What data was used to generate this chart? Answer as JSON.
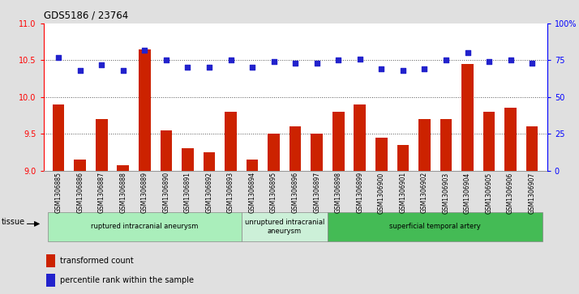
{
  "title": "GDS5186 / 23764",
  "samples": [
    "GSM1306885",
    "GSM1306886",
    "GSM1306887",
    "GSM1306888",
    "GSM1306889",
    "GSM1306890",
    "GSM1306891",
    "GSM1306892",
    "GSM1306893",
    "GSM1306894",
    "GSM1306895",
    "GSM1306896",
    "GSM1306897",
    "GSM1306898",
    "GSM1306899",
    "GSM1306900",
    "GSM1306901",
    "GSM1306902",
    "GSM1306903",
    "GSM1306904",
    "GSM1306905",
    "GSM1306906",
    "GSM1306907"
  ],
  "bar_values": [
    9.9,
    9.15,
    9.7,
    9.07,
    10.65,
    9.55,
    9.3,
    9.25,
    9.8,
    9.15,
    9.5,
    9.6,
    9.5,
    9.8,
    9.9,
    9.45,
    9.35,
    9.7,
    9.7,
    10.45,
    9.8,
    9.85,
    9.6
  ],
  "dot_values": [
    77,
    68,
    72,
    68,
    82,
    75,
    70,
    70,
    75,
    70,
    74,
    73,
    73,
    75,
    76,
    69,
    68,
    69,
    75,
    80,
    74,
    75,
    73
  ],
  "bar_color": "#cc2200",
  "dot_color": "#2222cc",
  "ylim_left": [
    9.0,
    11.0
  ],
  "ylim_right": [
    0,
    100
  ],
  "yticks_left": [
    9.0,
    9.5,
    10.0,
    10.5,
    11.0
  ],
  "yticks_right": [
    0,
    25,
    50,
    75,
    100
  ],
  "ytick_labels_right": [
    "0",
    "25",
    "50",
    "75",
    "100%"
  ],
  "groups": [
    {
      "label": "ruptured intracranial aneurysm",
      "start": 0,
      "end": 8,
      "color": "#aaeebb"
    },
    {
      "label": "unruptured intracranial\naneurysm",
      "start": 9,
      "end": 12,
      "color": "#ccf0d8"
    },
    {
      "label": "superficial temporal artery",
      "start": 13,
      "end": 22,
      "color": "#44bb55"
    }
  ],
  "legend_bar_label": "transformed count",
  "legend_dot_label": "percentile rank within the sample",
  "tissue_label": "tissue",
  "background_color": "#e0e0e0",
  "plot_bg_color": "#ffffff",
  "dotted_line_color": "#555555",
  "group_edge_color": "#888888"
}
